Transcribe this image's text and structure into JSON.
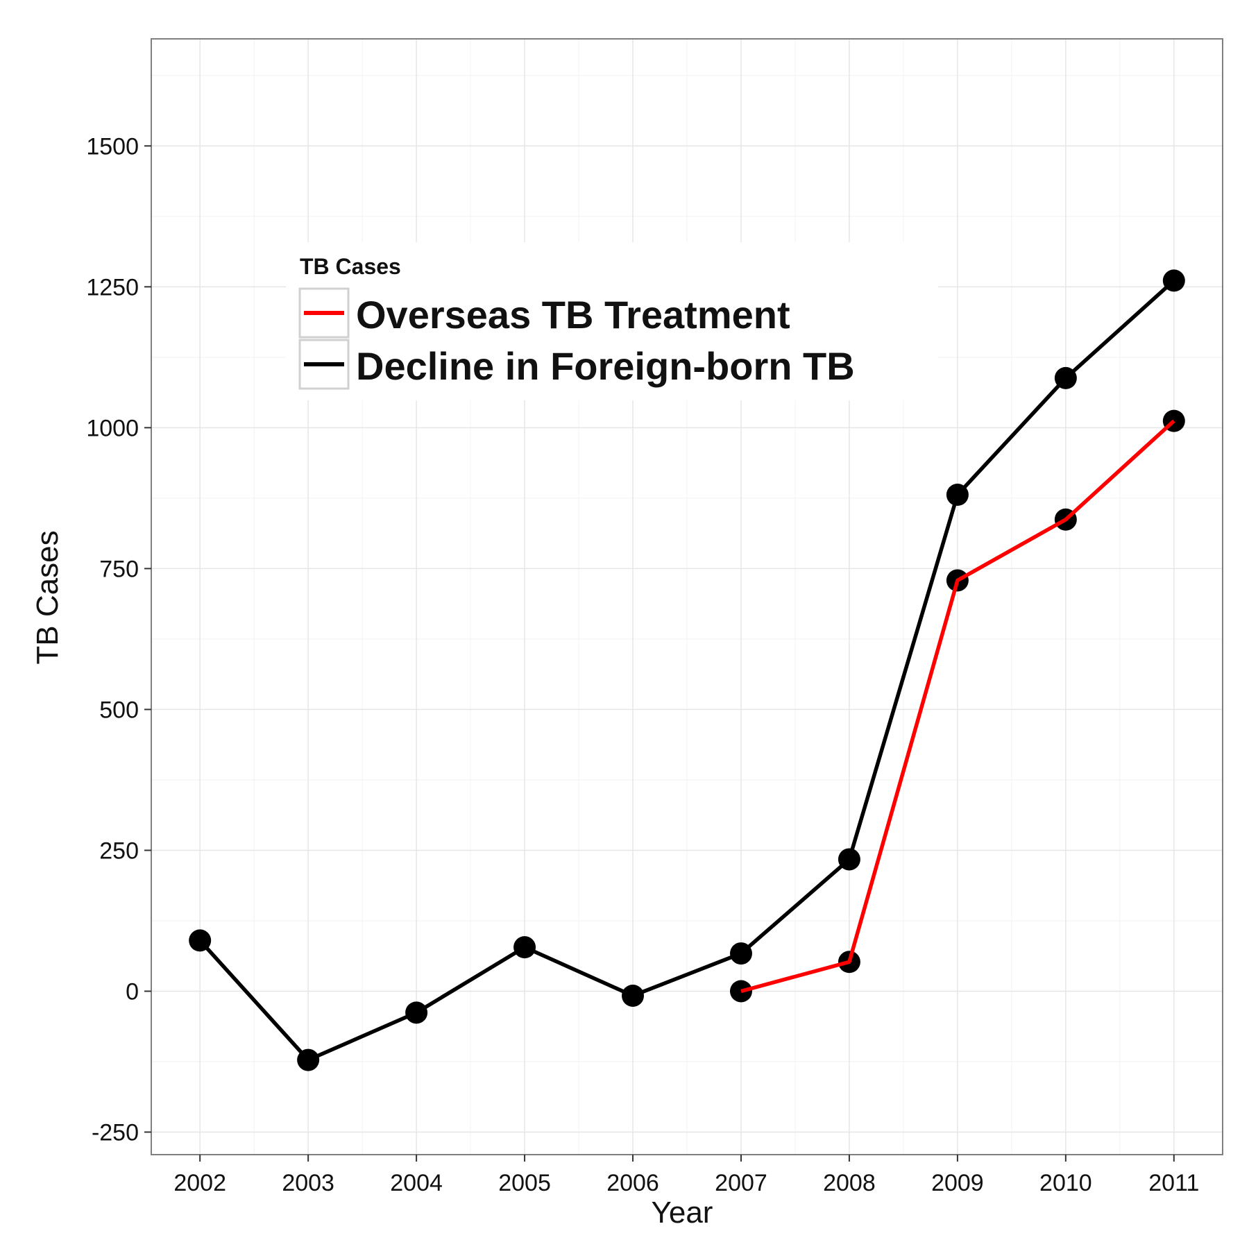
{
  "chart_data": {
    "type": "line",
    "title": "",
    "xlabel": "Year",
    "ylabel": "TB Cases",
    "x": [
      2002,
      2003,
      2004,
      2005,
      2006,
      2007,
      2008,
      2009,
      2010,
      2011
    ],
    "x_tick_labels": [
      "2002",
      "2003",
      "2004",
      "2005",
      "2006",
      "2007",
      "2008",
      "2009",
      "2010",
      "2011"
    ],
    "y_tick_values": [
      -250,
      0,
      250,
      500,
      750,
      1000,
      1250,
      1500
    ],
    "y_tick_labels": [
      "-250",
      "0",
      "250",
      "500",
      "750",
      "1000",
      "1250",
      "1500"
    ],
    "ylim": [
      -290,
      1690
    ],
    "xlim": [
      2001.55,
      2011.45
    ],
    "grid": true,
    "legend": {
      "title": "TB Cases",
      "placement": "inside top-left",
      "entries": [
        "Overseas TB Treatment",
        "Decline in Foreign-born TB"
      ]
    },
    "series": [
      {
        "name": "Overseas TB Treatment",
        "color": "#ff0000",
        "x": [
          2007,
          2008,
          2009,
          2010,
          2011
        ],
        "values": [
          0,
          52,
          729,
          837,
          1012
        ]
      },
      {
        "name": "Decline in Foreign-born TB",
        "color": "#000000",
        "x": [
          2002,
          2003,
          2004,
          2005,
          2006,
          2007,
          2008,
          2009,
          2010,
          2011
        ],
        "values": [
          90,
          -122,
          -38,
          78,
          -8,
          67,
          234,
          881,
          1088,
          1261
        ]
      }
    ]
  }
}
